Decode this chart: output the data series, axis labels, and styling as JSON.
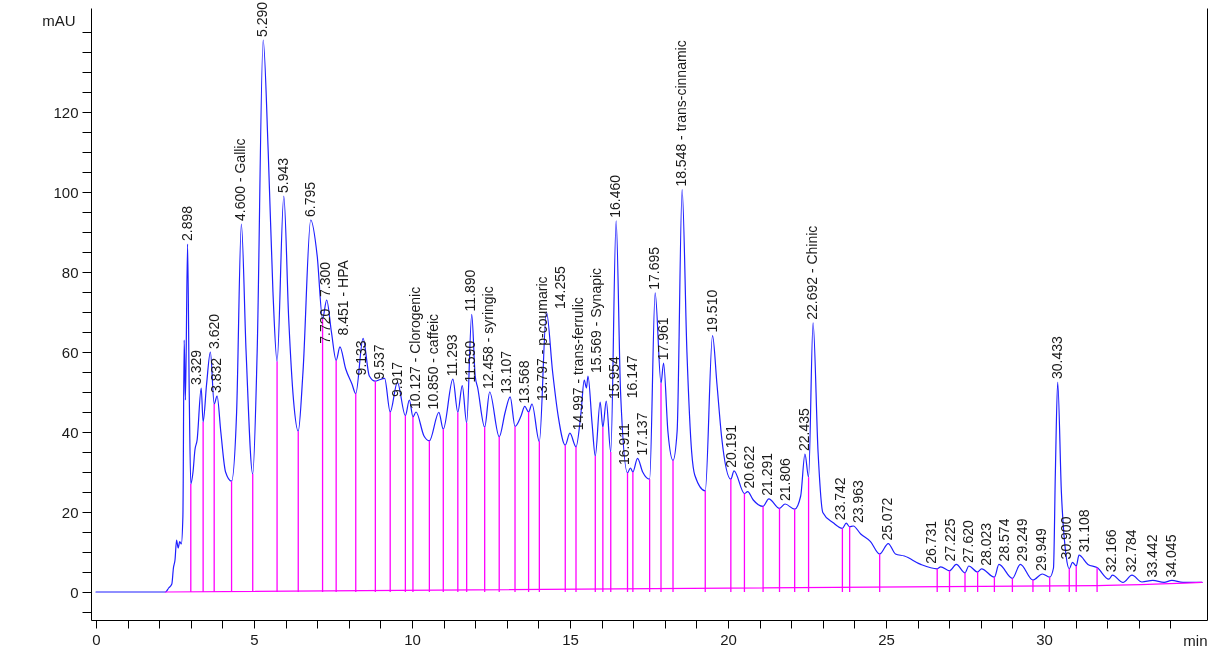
{
  "chart_data": {
    "type": "line",
    "xlabel": "min",
    "ylabel": "mAU",
    "xlim": [
      0,
      35
    ],
    "ylim": [
      -7,
      146
    ],
    "xticks": [
      0,
      {
        "value": 1,
        "label": null
      },
      {
        "value": 2,
        "label": null
      },
      {
        "value": 3,
        "label": null
      },
      {
        "value": 4,
        "label": null
      },
      5,
      {
        "value": 6,
        "label": null
      },
      {
        "value": 7,
        "label": null
      },
      {
        "value": 8,
        "label": null
      },
      {
        "value": 9,
        "label": null
      },
      10,
      {
        "value": 11,
        "label": null
      },
      {
        "value": 12,
        "label": null
      },
      {
        "value": 13,
        "label": null
      },
      {
        "value": 14,
        "label": null
      },
      15,
      {
        "value": 16,
        "label": null
      },
      {
        "value": 17,
        "label": null
      },
      {
        "value": 18,
        "label": null
      },
      {
        "value": 19,
        "label": null
      },
      20,
      {
        "value": 21,
        "label": null
      },
      {
        "value": 22,
        "label": null
      },
      {
        "value": 23,
        "label": null
      },
      {
        "value": 24,
        "label": null
      },
      25,
      {
        "value": 26,
        "label": null
      },
      {
        "value": 27,
        "label": null
      },
      {
        "value": 28,
        "label": null
      },
      {
        "value": 29,
        "label": null
      },
      30,
      {
        "value": 31,
        "label": null
      },
      {
        "value": 32,
        "label": null
      },
      {
        "value": 33,
        "label": null
      },
      {
        "value": 34,
        "label": null
      }
    ],
    "yticks": [
      {
        "value": -5,
        "label": null
      },
      0,
      {
        "value": 5,
        "label": null
      },
      {
        "value": 10,
        "label": null
      },
      {
        "value": 15,
        "label": null
      },
      20,
      {
        "value": 25,
        "label": null
      },
      {
        "value": 30,
        "label": null
      },
      {
        "value": 35,
        "label": null
      },
      40,
      {
        "value": 45,
        "label": null
      },
      {
        "value": 50,
        "label": null
      },
      {
        "value": 55,
        "label": null
      },
      60,
      {
        "value": 65,
        "label": null
      },
      {
        "value": 70,
        "label": null
      },
      {
        "value": 75,
        "label": null
      },
      80,
      {
        "value": 85,
        "label": null
      },
      {
        "value": 90,
        "label": null
      },
      {
        "value": 95,
        "label": null
      },
      100,
      {
        "value": 105,
        "label": null
      },
      {
        "value": 110,
        "label": null
      },
      {
        "value": 115,
        "label": null
      },
      120,
      {
        "value": 125,
        "label": null
      },
      {
        "value": 130,
        "label": null
      },
      {
        "value": 135,
        "label": null
      },
      {
        "value": 140,
        "label": null
      }
    ],
    "series": [
      {
        "color": "#1f1fff",
        "x": [
          0,
          2.2,
          2.3,
          2.4,
          2.45,
          2.5,
          2.55,
          2.6,
          2.65,
          2.7,
          2.75,
          2.79,
          2.83,
          2.898,
          2.95,
          3.0,
          3.07,
          3.13,
          3.2,
          3.329,
          3.39,
          3.5,
          3.62,
          3.74,
          3.832,
          3.95,
          4.1,
          4.29,
          4.45,
          4.6,
          4.75,
          4.96,
          5.1,
          5.29,
          5.45,
          5.6,
          5.73,
          5.943,
          6.1,
          6.25,
          6.4,
          6.55,
          6.795,
          7.0,
          7.17,
          7.3,
          7.45,
          7.6,
          7.72,
          7.9,
          8.1,
          8.22,
          8.451,
          8.65,
          8.84,
          8.95,
          9.133,
          9.31,
          9.537,
          9.79,
          9.917,
          10.03,
          10.127,
          10.38,
          10.55,
          10.85,
          10.99,
          11.293,
          11.45,
          11.59,
          11.73,
          11.89,
          12.0,
          12.08,
          12.3,
          12.458,
          12.76,
          12.95,
          13.107,
          13.26,
          13.45,
          13.568,
          13.69,
          13.797,
          14.03,
          14.255,
          14.45,
          14.63,
          14.85,
          14.997,
          15.19,
          15.35,
          15.45,
          15.52,
          15.569,
          15.7,
          15.8,
          15.954,
          16.04,
          16.147,
          16.29,
          16.46,
          16.6,
          16.82,
          16.911,
          16.99,
          17.137,
          17.3,
          17.52,
          17.695,
          17.88,
          17.961,
          18.1,
          18.26,
          18.39,
          18.548,
          18.7,
          18.85,
          18.95,
          19.28,
          19.51,
          19.65,
          19.8,
          20.09,
          20.191,
          20.52,
          20.622,
          20.8,
          21.11,
          21.291,
          21.63,
          21.806,
          22.11,
          22.3,
          22.435,
          22.55,
          22.692,
          22.85,
          23.0,
          23.33,
          23.62,
          23.742,
          23.85,
          23.963,
          24.2,
          24.51,
          24.8,
          25.072,
          25.3,
          25.58,
          26.1,
          26.62,
          26.731,
          27.01,
          27.225,
          27.5,
          27.62,
          27.9,
          28.023,
          28.43,
          28.574,
          29.0,
          29.249,
          29.65,
          29.949,
          30.18,
          30.3,
          30.36,
          30.433,
          30.55,
          30.7,
          30.8,
          30.9,
          31.02,
          31.108,
          31.39,
          31.68,
          32.05,
          32.166,
          32.5,
          32.784,
          33.1,
          33.442,
          33.8,
          34.045,
          34.4,
          35
        ],
        "values": [
          0,
          0,
          1,
          2,
          6,
          8,
          13,
          11,
          12.6,
          12,
          19,
          63,
          48,
          87,
          50,
          27,
          30,
          35.5,
          38,
          51,
          42.5,
          52,
          60,
          47,
          49,
          40,
          30,
          27.7,
          45,
          92,
          60,
          29.5,
          60,
          138,
          110,
          75,
          57.6,
          99,
          68,
          48,
          40.2,
          55,
          93,
          84,
          68.3,
          73,
          65,
          57.9,
          61.3,
          55.8,
          52,
          49.6,
          63.4,
          54,
          52.7,
          53,
          53.4,
          45,
          52.4,
          44.1,
          48,
          43.8,
          45,
          39,
          37.8,
          44.9,
          40.7,
          53.2,
          44.9,
          51.6,
          42.3,
          69.4,
          54,
          51,
          41.2,
          50,
          38.8,
          45,
          48.8,
          41.4,
          44,
          46.4,
          45,
          47,
          37.6,
          70,
          55,
          43.8,
          36.7,
          39.7,
          36.3,
          45,
          53,
          51,
          54,
          42,
          34,
          47.5,
          41.2,
          47.7,
          35,
          92.8,
          50,
          29.8,
          31,
          30,
          33.4,
          30,
          28.2,
          74.8,
          52.2,
          57.2,
          40,
          32.9,
          40.2,
          100.6,
          60,
          35,
          29.2,
          25.3,
          64.1,
          52,
          38.6,
          28.2,
          30.3,
          24.6,
          25.1,
          23,
          21.4,
          23.3,
          20.9,
          22,
          20.7,
          24,
          34.5,
          28.7,
          67.3,
          35,
          19.9,
          17.3,
          15.9,
          17.2,
          16.3,
          16.5,
          14.5,
          12.6,
          9.5,
          12.1,
          9.5,
          9,
          6.9,
          5.8,
          6.3,
          5.3,
          6.9,
          4.8,
          6.5,
          5.0,
          5.8,
          3.7,
          6.9,
          3.4,
          6.9,
          3.0,
          4.5,
          3.7,
          6,
          30,
          52.5,
          25,
          9,
          5.8,
          7.4,
          6.5,
          9.2,
          6.9,
          6.1,
          3.2,
          4.2,
          2.4,
          4.2,
          2.5,
          2.9,
          2.4,
          2.9,
          2.4,
          2.4
        ]
      },
      {
        "color": "#ff00ff",
        "x": [
          2.2,
          31.7,
          35
        ],
        "values": [
          0,
          1.6,
          2.4
        ]
      },
      {
        "type": "bar",
        "color": "#ff00ff",
        "x": [
          3.0,
          3.39,
          3.74,
          4.29,
          4.96,
          5.73,
          6.4,
          7.17,
          7.6,
          8.22,
          8.84,
          9.31,
          9.79,
          10.03,
          10.55,
          10.99,
          11.45,
          11.73,
          12.3,
          12.76,
          13.26,
          13.69,
          14.03,
          14.85,
          15.19,
          15.8,
          16.04,
          16.29,
          16.82,
          16.99,
          17.52,
          17.88,
          18.26,
          19.28,
          20.09,
          20.52,
          21.11,
          21.63,
          22.11,
          22.55,
          23.62,
          23.85,
          24.8,
          26.62,
          27.01,
          27.5,
          27.9,
          28.43,
          29.0,
          29.65,
          30.18,
          30.8,
          31.02,
          31.68
        ],
        "values": [
          27,
          42.5,
          47,
          27.7,
          29.5,
          57.6,
          40.2,
          68.3,
          57.9,
          49.6,
          52.7,
          45,
          44.1,
          43.8,
          37.8,
          40.7,
          44.9,
          42.3,
          41.2,
          38.8,
          41.4,
          45,
          37.6,
          36.7,
          36.3,
          34,
          41.2,
          35,
          29.8,
          30,
          28.2,
          52.2,
          32.9,
          25.3,
          28.2,
          24.6,
          21.4,
          20.9,
          20.7,
          28.7,
          15.9,
          16.3,
          9.5,
          5.8,
          5.3,
          4.8,
          5.0,
          3.7,
          3.4,
          3.0,
          3.7,
          5.8,
          6.5,
          6.1
        ]
      }
    ],
    "annotations": [
      {
        "text": "2.898",
        "x": 2.898,
        "y": 87
      },
      {
        "text": "3.329",
        "x": 3.329,
        "y": 51
      },
      {
        "text": "3.620",
        "x": 3.62,
        "y": 60
      },
      {
        "text": "3.832",
        "x": 3.832,
        "y": 49
      },
      {
        "text": "4.600 - Gallic",
        "x": 4.6,
        "y": 92
      },
      {
        "text": "5.290",
        "x": 5.29,
        "y": 138
      },
      {
        "text": "5.943",
        "x": 5.943,
        "y": 99
      },
      {
        "text": "6.795",
        "x": 6.795,
        "y": 93
      },
      {
        "text": "7.300",
        "x": 7.3,
        "y": 73
      },
      {
        "text": "7.720",
        "x": 7.72,
        "y": 61.3
      },
      {
        "text": "8.451 - HPA",
        "x": 8.451,
        "y": 63.4
      },
      {
        "text": "9.133",
        "x": 9.133,
        "y": 53.4
      },
      {
        "text": "9.537",
        "x": 9.537,
        "y": 52.4
      },
      {
        "text": "9.917",
        "x": 9.917,
        "y": 48
      },
      {
        "text": "10.127 - Clorogenic",
        "x": 10.127,
        "y": 45
      },
      {
        "text": "10.850 - caffeic",
        "x": 10.85,
        "y": 44.9
      },
      {
        "text": "11.293",
        "x": 11.293,
        "y": 53.2
      },
      {
        "text": "11.590",
        "x": 11.59,
        "y": 51.6
      },
      {
        "text": "11.890",
        "x": 11.89,
        "y": 69.4
      },
      {
        "text": "12.458 - syringic",
        "x": 12.458,
        "y": 50
      },
      {
        "text": "13.107",
        "x": 13.107,
        "y": 48.8
      },
      {
        "text": "13.568",
        "x": 13.568,
        "y": 46.4
      },
      {
        "text": "13.797 - p-coumaric",
        "x": 13.797,
        "y": 47
      },
      {
        "text": "14.255",
        "x": 14.255,
        "y": 70
      },
      {
        "text": "14.997 - trans-ferrulic",
        "x": 14.997,
        "y": 39.7
      },
      {
        "text": "15.569 - Synapic",
        "x": 15.569,
        "y": 54
      },
      {
        "text": "15.954",
        "x": 15.954,
        "y": 47.5
      },
      {
        "text": "16.147",
        "x": 16.147,
        "y": 47.7
      },
      {
        "text": "16.460",
        "x": 16.46,
        "y": 92.8
      },
      {
        "text": "16.911",
        "x": 16.911,
        "y": 31
      },
      {
        "text": "17.137",
        "x": 17.137,
        "y": 33.4
      },
      {
        "text": "17.695",
        "x": 17.695,
        "y": 74.8
      },
      {
        "text": "17.961",
        "x": 17.961,
        "y": 57.2
      },
      {
        "text": "18.548 - trans-cinnamic",
        "x": 18.548,
        "y": 100.6
      },
      {
        "text": "19.510",
        "x": 19.51,
        "y": 64.1
      },
      {
        "text": "20.191",
        "x": 20.191,
        "y": 30.3
      },
      {
        "text": "20.622",
        "x": 20.622,
        "y": 25.1
      },
      {
        "text": "21.291",
        "x": 21.291,
        "y": 23.3
      },
      {
        "text": "21.806",
        "x": 21.806,
        "y": 22
      },
      {
        "text": "22.435",
        "x": 22.435,
        "y": 34.5
      },
      {
        "text": "22.692 - Chinic",
        "x": 22.692,
        "y": 67.3
      },
      {
        "text": "23.742",
        "x": 23.742,
        "y": 17.2
      },
      {
        "text": "23.963",
        "x": 23.963,
        "y": 16.5
      },
      {
        "text": "25.072",
        "x": 25.072,
        "y": 12.1
      },
      {
        "text": "26.731",
        "x": 26.731,
        "y": 6.3
      },
      {
        "text": "27.225",
        "x": 27.225,
        "y": 6.9
      },
      {
        "text": "27.620",
        "x": 27.62,
        "y": 6.5
      },
      {
        "text": "28.023",
        "x": 28.023,
        "y": 5.8
      },
      {
        "text": "28.574",
        "x": 28.574,
        "y": 6.9
      },
      {
        "text": "29.249",
        "x": 29.249,
        "y": 6.9
      },
      {
        "text": "29.949",
        "x": 29.949,
        "y": 4.5
      },
      {
        "text": "30.433",
        "x": 30.433,
        "y": 52.5
      },
      {
        "text": "30.900",
        "x": 30.9,
        "y": 7.4
      },
      {
        "text": "31.108",
        "x": 31.108,
        "y": 9.2
      },
      {
        "text": "32.166",
        "x": 32.166,
        "y": 4.2
      },
      {
        "text": "32.784",
        "x": 32.784,
        "y": 4.2
      },
      {
        "text": "33.442",
        "x": 33.442,
        "y": 2.9
      },
      {
        "text": "34.045",
        "x": 34.045,
        "y": 2.9
      }
    ]
  }
}
